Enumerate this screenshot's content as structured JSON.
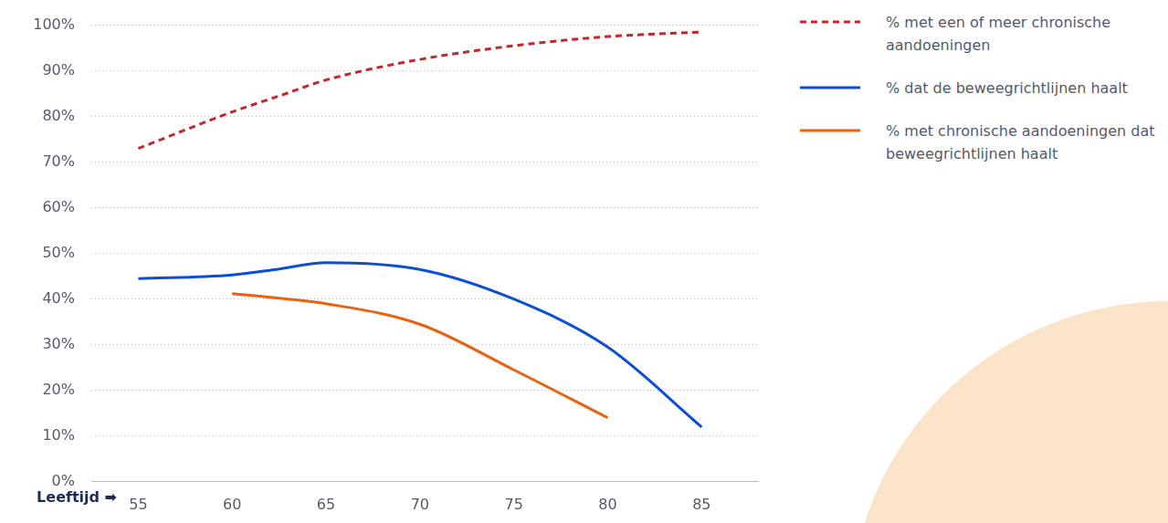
{
  "chart_data": {
    "type": "line",
    "x_label": "Leeftijd ➡",
    "x": [
      55,
      60,
      62.5,
      65,
      70,
      75,
      80,
      85
    ],
    "xlim": [
      52.5,
      88
    ],
    "xticks": [
      55,
      60,
      65,
      70,
      75,
      80,
      85
    ],
    "ylim": [
      0,
      100
    ],
    "yticks": [
      {
        "value": 0,
        "label": "0%"
      },
      {
        "value": 10,
        "label": "10%"
      },
      {
        "value": 20,
        "label": "20%"
      },
      {
        "value": 30,
        "label": "30%"
      },
      {
        "value": 40,
        "label": "40%"
      },
      {
        "value": 50,
        "label": "50%"
      },
      {
        "value": 60,
        "label": "60%"
      },
      {
        "value": 70,
        "label": "70%"
      },
      {
        "value": 80,
        "label": "80%"
      },
      {
        "value": 90,
        "label": "90%"
      },
      {
        "value": 100,
        "label": "100%"
      }
    ],
    "grid": true,
    "legend": "right",
    "series": [
      {
        "name": "% met een of meer chronische aandoeningen",
        "color": "#c0282d",
        "line_style": "dashed",
        "values": [
          73,
          81,
          84.5,
          88,
          92.5,
          95.5,
          97.5,
          98.5
        ]
      },
      {
        "name": "% dat de beweegrichtlijnen haalt",
        "color": "#0a4fd6",
        "line_style": "solid",
        "values": [
          44.5,
          45.3,
          46.6,
          48,
          46.5,
          40,
          29.5,
          12
        ]
      },
      {
        "name": "% met chronische aandoeningen dat beweegrichtlijnen haalt",
        "color": "#e8620f",
        "line_style": "solid",
        "values": [
          null,
          41.2,
          40.2,
          39,
          34.5,
          24.5,
          14,
          null
        ]
      }
    ]
  }
}
